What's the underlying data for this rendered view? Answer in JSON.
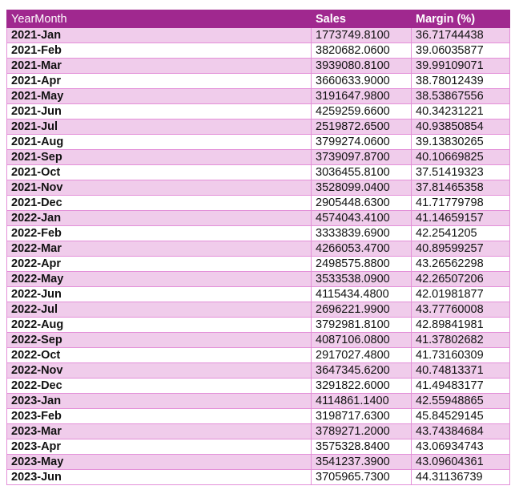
{
  "table": {
    "headers": [
      "YearMonth",
      "Sales",
      "Margin (%)"
    ],
    "colors": {
      "header_bg": "#a0288f",
      "band_bg": "#f0cceb",
      "border": "#e38fd8"
    },
    "rows": [
      [
        "2021-Jan",
        "1773749.8100",
        "36.71744438"
      ],
      [
        "2021-Feb",
        "3820682.0600",
        "39.06035877"
      ],
      [
        "2021-Mar",
        "3939080.8100",
        "39.99109071"
      ],
      [
        "2021-Apr",
        "3660633.9000",
        "38.78012439"
      ],
      [
        "2021-May",
        "3191647.9800",
        "38.53867556"
      ],
      [
        "2021-Jun",
        "4259259.6600",
        "40.34231221"
      ],
      [
        "2021-Jul",
        "2519872.6500",
        "40.93850854"
      ],
      [
        "2021-Aug",
        "3799274.0600",
        "39.13830265"
      ],
      [
        "2021-Sep",
        "3739097.8700",
        "40.10669825"
      ],
      [
        "2021-Oct",
        "3036455.8100",
        "37.51419323"
      ],
      [
        "2021-Nov",
        "3528099.0400",
        "37.81465358"
      ],
      [
        "2021-Dec",
        "2905448.6300",
        "41.71779798"
      ],
      [
        "2022-Jan",
        "4574043.4100",
        "41.14659157"
      ],
      [
        "2022-Feb",
        "3333839.6900",
        "42.2541205"
      ],
      [
        "2022-Mar",
        "4266053.4700",
        "40.89599257"
      ],
      [
        "2022-Apr",
        "2498575.8800",
        "43.26562298"
      ],
      [
        "2022-May",
        "3533538.0900",
        "42.26507206"
      ],
      [
        "2022-Jun",
        "4115434.4800",
        "42.01981877"
      ],
      [
        "2022-Jul",
        "2696221.9900",
        "43.77760008"
      ],
      [
        "2022-Aug",
        "3792981.8100",
        "42.89841981"
      ],
      [
        "2022-Sep",
        "4087106.0800",
        "41.37802682"
      ],
      [
        "2022-Oct",
        "2917027.4800",
        "41.73160309"
      ],
      [
        "2022-Nov",
        "3647345.6200",
        "40.74813371"
      ],
      [
        "2022-Dec",
        "3291822.6000",
        "41.49483177"
      ],
      [
        "2023-Jan",
        "4114861.1400",
        "42.55948865"
      ],
      [
        "2023-Feb",
        "3198717.6300",
        "45.84529145"
      ],
      [
        "2023-Mar",
        "3789271.2000",
        "43.74384684"
      ],
      [
        "2023-Apr",
        "3575328.8400",
        "43.06934743"
      ],
      [
        "2023-May",
        "3541237.3900",
        "43.09604361"
      ],
      [
        "2023-Jun",
        "3705965.7300",
        "44.31136739"
      ]
    ]
  }
}
